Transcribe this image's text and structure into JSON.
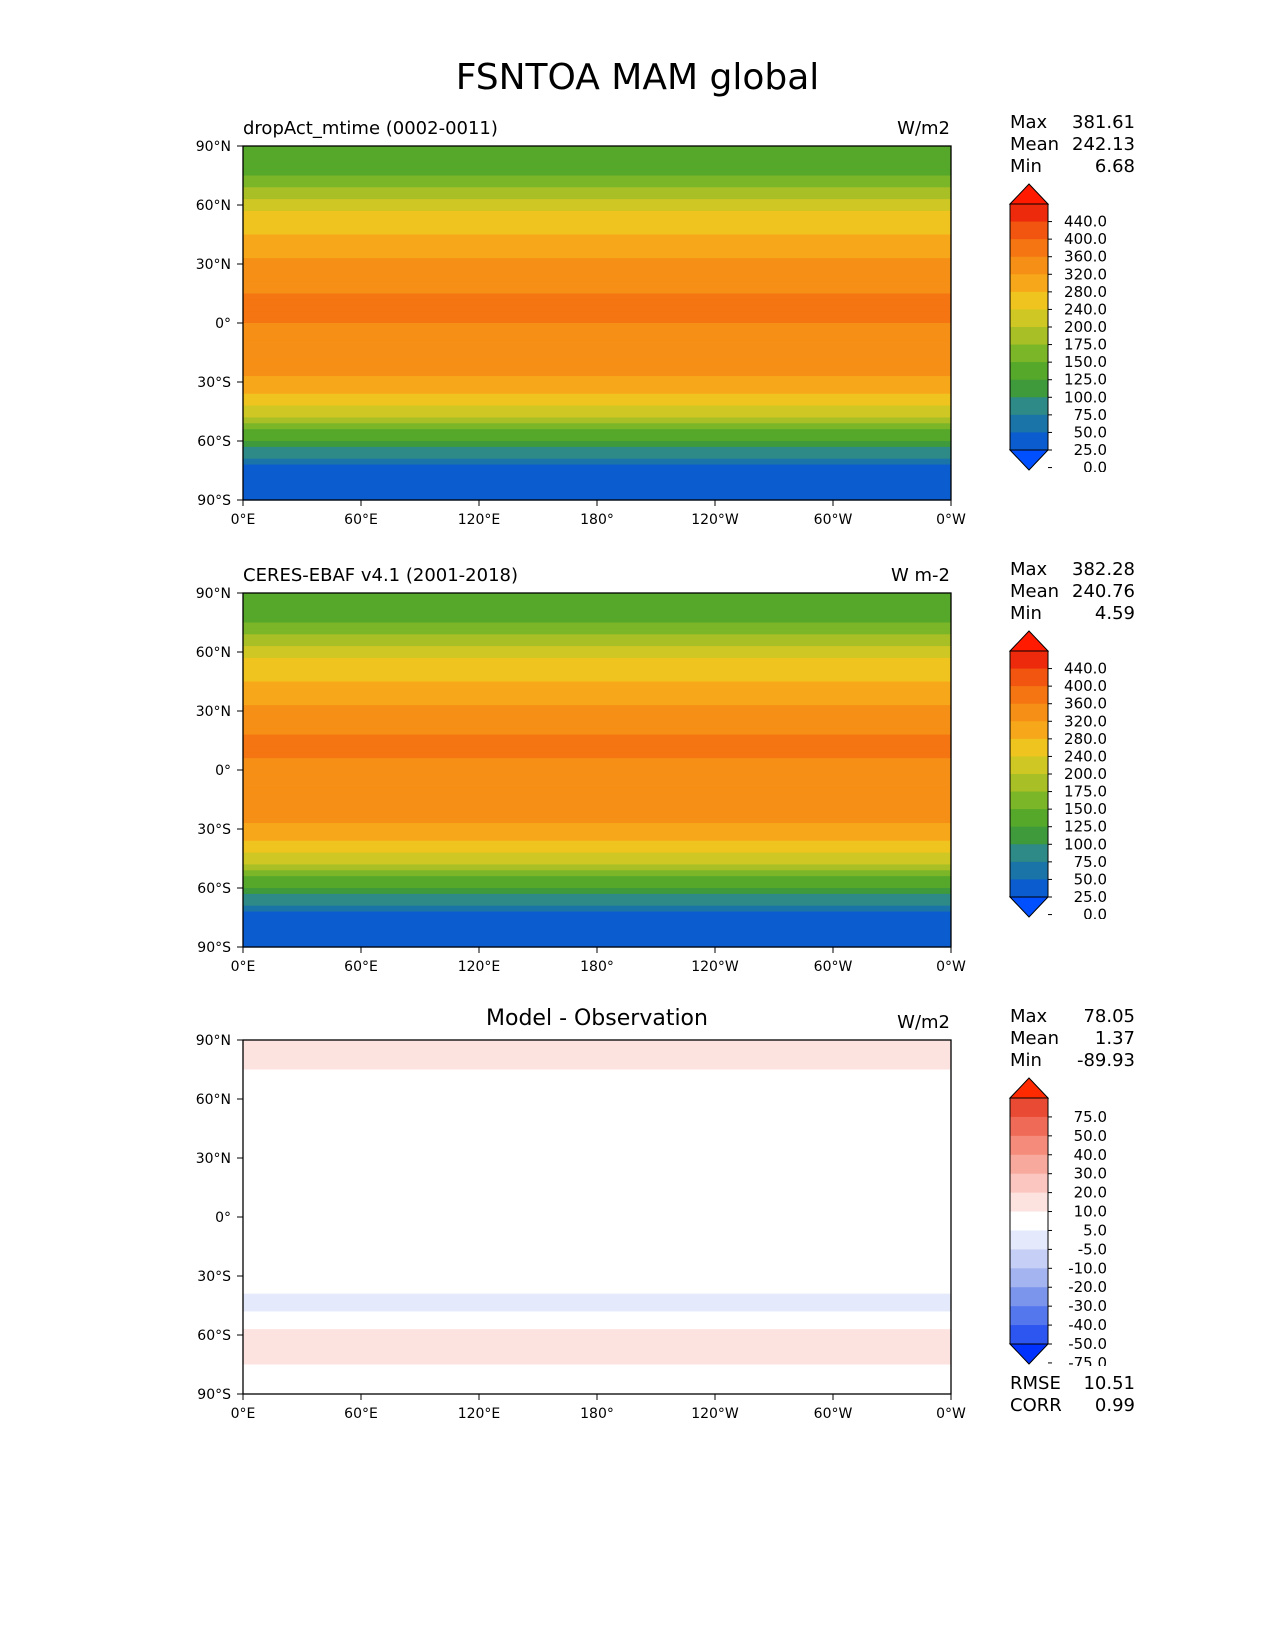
{
  "figure_title": "FSNTOA MAM global",
  "lat_ticks": [
    "90°N",
    "60°N",
    "30°N",
    "0°",
    "30°S",
    "60°S",
    "90°S"
  ],
  "lon_ticks": [
    "0°E",
    "60°E",
    "120°E",
    "180°",
    "120°W",
    "60°W",
    "0°W"
  ],
  "panels": [
    {
      "title": "dropAct_mtime (0002-0011)",
      "units": "W/m2",
      "stats": [
        {
          "label": "Max",
          "value": "381.61"
        },
        {
          "label": "Mean",
          "value": "242.13"
        },
        {
          "label": "Min",
          "value": "6.68"
        }
      ],
      "colorbar_labels": [
        "440.0",
        "400.0",
        "360.0",
        "320.0",
        "280.0",
        "240.0",
        "200.0",
        "175.0",
        "150.0",
        "125.0",
        "100.0",
        "75.0",
        "50.0",
        "25.0",
        "0.0"
      ]
    },
    {
      "title": "CERES-EBAF v4.1 (2001-2018)",
      "units": "W m-2",
      "stats": [
        {
          "label": "Max",
          "value": "382.28"
        },
        {
          "label": "Mean",
          "value": "240.76"
        },
        {
          "label": "Min",
          "value": "4.59"
        }
      ],
      "colorbar_labels": [
        "440.0",
        "400.0",
        "360.0",
        "320.0",
        "280.0",
        "240.0",
        "200.0",
        "175.0",
        "150.0",
        "125.0",
        "100.0",
        "75.0",
        "50.0",
        "25.0",
        "0.0"
      ]
    },
    {
      "title": "Model - Observation",
      "units": "W/m2",
      "stats": [
        {
          "label": "Max",
          "value": "78.05"
        },
        {
          "label": "Mean",
          "value": "1.37"
        },
        {
          "label": "Min",
          "value": "-89.93"
        }
      ],
      "colorbar_labels": [
        "75.0",
        "50.0",
        "40.0",
        "30.0",
        "20.0",
        "10.0",
        "5.0",
        "-5.0",
        "-10.0",
        "-20.0",
        "-30.0",
        "-40.0",
        "-50.0",
        "-75.0"
      ],
      "extra_stats": [
        {
          "label": "RMSE",
          "value": "10.51"
        },
        {
          "label": "CORR",
          "value": "0.99"
        }
      ]
    }
  ],
  "chart_data": [
    {
      "type": "heatmap",
      "title": "dropAct_mtime (0002-0011)",
      "units": "W/m2",
      "x_range": [
        0,
        360
      ],
      "y_range": [
        -90,
        90
      ],
      "colorbar_levels": [
        0,
        25,
        50,
        75,
        100,
        125,
        150,
        175,
        200,
        240,
        280,
        320,
        360,
        400,
        440
      ],
      "colors": [
        "#0050ff",
        "#0a5ccf",
        "#1a74a8",
        "#2e8a86",
        "#3f9a3c",
        "#55a82a",
        "#7bb528",
        "#a8c025",
        "#cfc723",
        "#f0c41e",
        "#f7a81a",
        "#f68f15",
        "#f47511",
        "#f1550f",
        "#ee2a0c",
        "#ff1a00"
      ],
      "zonal_profile": [
        {
          "lat": 90,
          "value": 100
        },
        {
          "lat": 75,
          "value": 120
        },
        {
          "lat": 60,
          "value": 190
        },
        {
          "lat": 45,
          "value": 240
        },
        {
          "lat": 30,
          "value": 290
        },
        {
          "lat": 15,
          "value": 320
        },
        {
          "lat": 0,
          "value": 320
        },
        {
          "lat": -15,
          "value": 310
        },
        {
          "lat": -30,
          "value": 270
        },
        {
          "lat": -45,
          "value": 190
        },
        {
          "lat": -60,
          "value": 90
        },
        {
          "lat": -75,
          "value": 15
        },
        {
          "lat": -90,
          "value": 10
        }
      ],
      "stats": {
        "max": 381.61,
        "mean": 242.13,
        "min": 6.68
      }
    },
    {
      "type": "heatmap",
      "title": "CERES-EBAF v4.1 (2001-2018)",
      "units": "W m-2",
      "x_range": [
        0,
        360
      ],
      "y_range": [
        -90,
        90
      ],
      "colorbar_levels": [
        0,
        25,
        50,
        75,
        100,
        125,
        150,
        175,
        200,
        240,
        280,
        320,
        360,
        400,
        440
      ],
      "colors": [
        "#0050ff",
        "#0a5ccf",
        "#1a74a8",
        "#2e8a86",
        "#3f9a3c",
        "#55a82a",
        "#7bb528",
        "#a8c025",
        "#cfc723",
        "#f0c41e",
        "#f7a81a",
        "#f68f15",
        "#f47511",
        "#f1550f",
        "#ee2a0c",
        "#ff1a00"
      ],
      "zonal_profile": [
        {
          "lat": 90,
          "value": 100
        },
        {
          "lat": 75,
          "value": 120
        },
        {
          "lat": 60,
          "value": 190
        },
        {
          "lat": 45,
          "value": 240
        },
        {
          "lat": 30,
          "value": 295
        },
        {
          "lat": 15,
          "value": 325
        },
        {
          "lat": 0,
          "value": 315
        },
        {
          "lat": -15,
          "value": 305
        },
        {
          "lat": -30,
          "value": 270
        },
        {
          "lat": -45,
          "value": 190
        },
        {
          "lat": -60,
          "value": 90
        },
        {
          "lat": -75,
          "value": 15
        },
        {
          "lat": -90,
          "value": 10
        }
      ],
      "stats": {
        "max": 382.28,
        "mean": 240.76,
        "min": 4.59
      }
    },
    {
      "type": "heatmap",
      "title": "Model - Observation",
      "units": "W/m2",
      "x_range": [
        0,
        360
      ],
      "y_range": [
        -90,
        90
      ],
      "colorbar_levels": [
        -75,
        -50,
        -40,
        -30,
        -20,
        -10,
        -5,
        5,
        10,
        20,
        30,
        40,
        50,
        75
      ],
      "colors": [
        "#0032ff",
        "#2d55f0",
        "#5577ee",
        "#7c95ec",
        "#a3b4f0",
        "#c6d0f6",
        "#e4e9fb",
        "#ffffff",
        "#fde3e0",
        "#fbc6bf",
        "#f8a99d",
        "#f48b7b",
        "#ef6b57",
        "#e94a33",
        "#ff2a00"
      ],
      "zonal_profile": [
        {
          "lat": 90,
          "value": 10
        },
        {
          "lat": 60,
          "value": 0
        },
        {
          "lat": 30,
          "value": -5
        },
        {
          "lat": 0,
          "value": 5
        },
        {
          "lat": -30,
          "value": 0
        },
        {
          "lat": -45,
          "value": -10
        },
        {
          "lat": -60,
          "value": 10
        },
        {
          "lat": -90,
          "value": 0
        }
      ],
      "stats": {
        "max": 78.05,
        "mean": 1.37,
        "min": -89.93,
        "rmse": 10.51,
        "corr": 0.99
      }
    }
  ]
}
